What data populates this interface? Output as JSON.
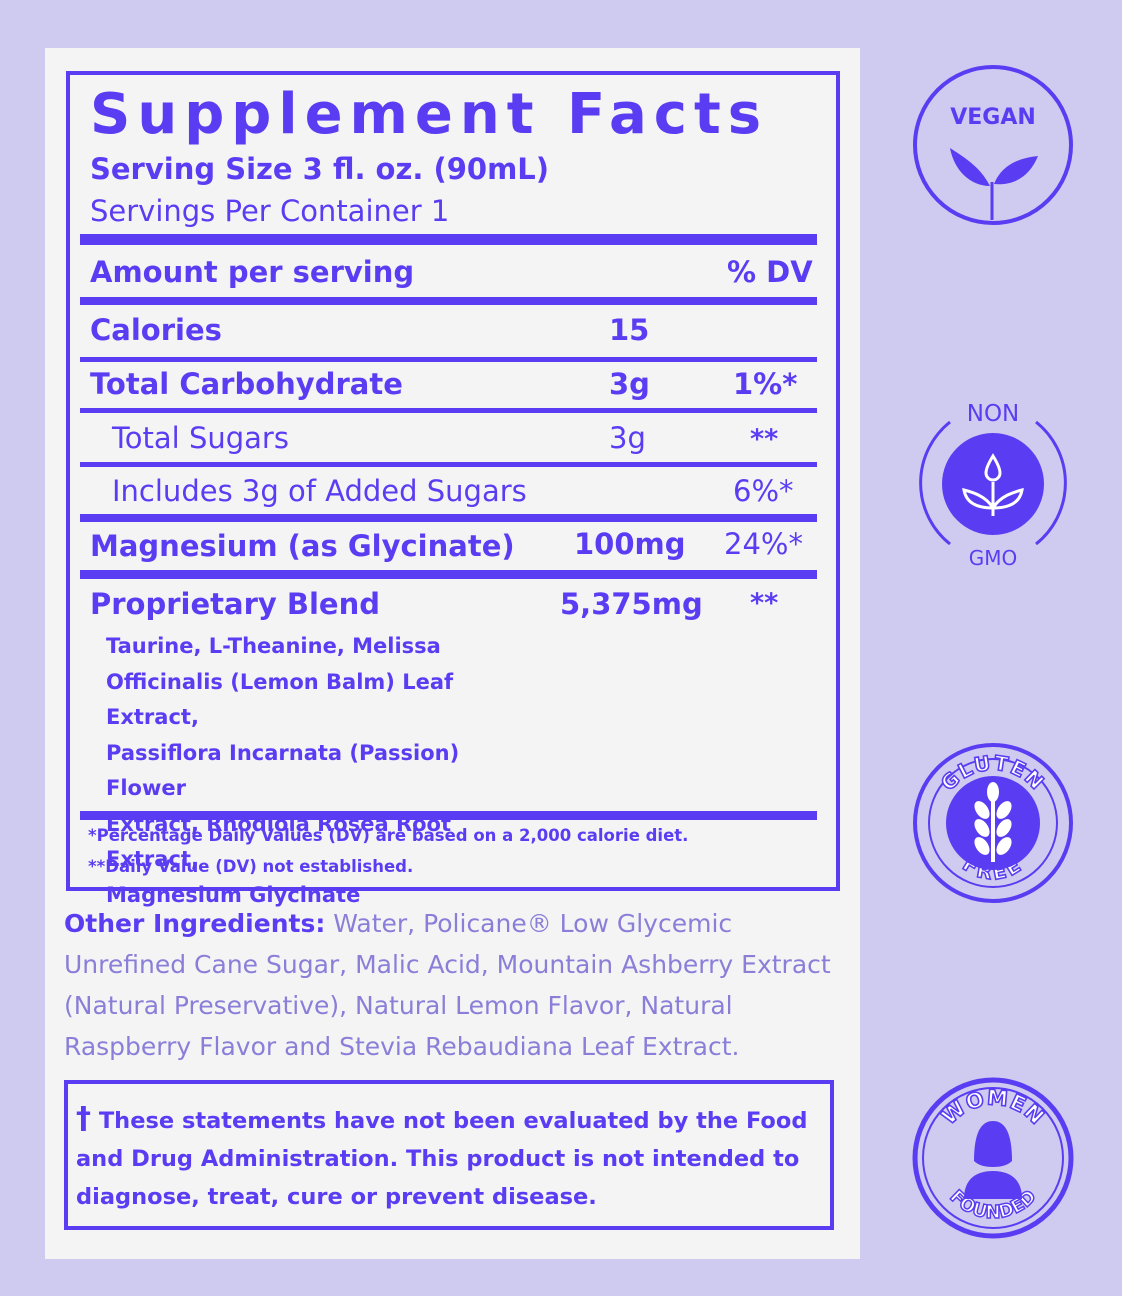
{
  "facts": {
    "title": "Supplement Facts",
    "serving_size": "Serving Size 3 fl. oz. (90mL)",
    "servings_per_container": "Servings Per Container  1",
    "amount_header": "Amount per serving",
    "dv_header": "% DV",
    "rows": [
      {
        "name": "Calories",
        "amount": "15",
        "dv": ""
      },
      {
        "name": "Total Carbohydrate",
        "amount": "3g",
        "dv": "1%*"
      },
      {
        "name": "Total Sugars",
        "amount": "3g",
        "dv": "**"
      },
      {
        "name": "Includes 3g of Added Sugars",
        "amount": "",
        "dv": "6%*"
      },
      {
        "name": "Magnesium (as Glycinate)",
        "amount": "100mg",
        "dv": "24%*"
      },
      {
        "name": "Proprietary Blend",
        "amount": "5,375mg",
        "dv": "**"
      }
    ],
    "blend_ingredients": [
      "Taurine, L-Theanine, Melissa",
      "Officinalis (Lemon Balm) Leaf Extract,",
      "Passiflora Incarnata (Passion) Flower",
      "Extract, Rhodiola Rosea Root Extract,",
      "Magnesium Glycinate"
    ],
    "footnote_1": "*Percentage Daily Values (DV) are based on a 2,000 calorie diet.",
    "footnote_2": "**Daily Value (DV) not established."
  },
  "other_ingredients": {
    "label": "Other Ingredients:",
    "text": " Water, Policane® Low Glycemic Unrefined Cane Sugar, Malic Acid, Mountain Ashberry Extract (Natural Preservative), Natural Lemon Flavor, Natural Raspberry Flavor and Stevia Rebaudiana Leaf Extract."
  },
  "disclaimer": {
    "dagger": "†",
    "text": " These statements have not been evaluated by the Food and Drug Administration. This product is not intended to diagnose, treat, cure or prevent disease."
  },
  "badges": {
    "vegan": {
      "label": "VEGAN",
      "icon": "leaf-sprout-icon"
    },
    "non_gmo": {
      "top": "NON",
      "bottom": "GMO",
      "icon": "drop-sprout-icon"
    },
    "gluten_free": {
      "top": "GLUTEN",
      "bottom": "FREE",
      "icon": "wheat-icon"
    },
    "women_founded": {
      "top": "WOMEN",
      "bottom": "FOUNDED",
      "icon": "woman-silhouette-icon"
    }
  },
  "colors": {
    "primary": "#5a3df2",
    "muted_text": "#8a7ed8",
    "background": "#cfcbf0",
    "card": "#f4f4f5"
  }
}
